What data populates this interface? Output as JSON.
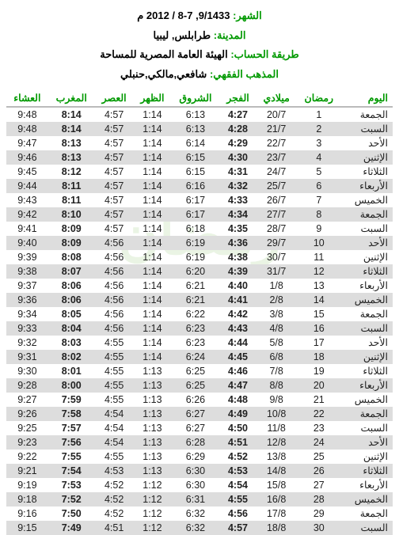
{
  "header": {
    "month_label": "الشهر:",
    "month_value": "9/1433, 7-8 / 2012 م",
    "city_label": "المدينة:",
    "city_value": "طرابلس, ليبيا",
    "method_label": "طريقة الحساب:",
    "method_value": "الهيئة العامة المصرية للمساحة",
    "school_label": "المذهب الفقهي:",
    "school_value": "شافعي,مالكي,حنبلي"
  },
  "watermark": "رمضان",
  "columns": [
    "اليوم",
    "رمضان",
    "ميلادي",
    "الفجر",
    "الشروق",
    "الظهر",
    "العصر",
    "المغرب",
    "العشاء"
  ],
  "rows": [
    [
      "الجمعة",
      "1",
      "20/7",
      "4:27",
      "6:13",
      "1:14",
      "4:57",
      "8:14",
      "9:48"
    ],
    [
      "السبت",
      "2",
      "21/7",
      "4:28",
      "6:13",
      "1:14",
      "4:57",
      "8:14",
      "9:48"
    ],
    [
      "الأحد",
      "3",
      "22/7",
      "4:29",
      "6:14",
      "1:14",
      "4:57",
      "8:13",
      "9:47"
    ],
    [
      "الإثنين",
      "4",
      "23/7",
      "4:30",
      "6:15",
      "1:14",
      "4:57",
      "8:13",
      "9:46"
    ],
    [
      "الثلاثاء",
      "5",
      "24/7",
      "4:31",
      "6:15",
      "1:14",
      "4:57",
      "8:12",
      "9:45"
    ],
    [
      "الأربعاء",
      "6",
      "25/7",
      "4:32",
      "6:16",
      "1:14",
      "4:57",
      "8:11",
      "9:44"
    ],
    [
      "الخميس",
      "7",
      "26/7",
      "4:33",
      "6:17",
      "1:14",
      "4:57",
      "8:11",
      "9:43"
    ],
    [
      "الجمعة",
      "8",
      "27/7",
      "4:34",
      "6:17",
      "1:14",
      "4:57",
      "8:10",
      "9:42"
    ],
    [
      "السبت",
      "9",
      "28/7",
      "4:35",
      "6:18",
      "1:14",
      "4:57",
      "8:09",
      "9:41"
    ],
    [
      "الأحد",
      "10",
      "29/7",
      "4:36",
      "6:19",
      "1:14",
      "4:56",
      "8:09",
      "9:40"
    ],
    [
      "الإثنين",
      "11",
      "30/7",
      "4:38",
      "6:19",
      "1:14",
      "4:56",
      "8:08",
      "9:39"
    ],
    [
      "الثلاثاء",
      "12",
      "31/7",
      "4:39",
      "6:20",
      "1:14",
      "4:56",
      "8:07",
      "9:38"
    ],
    [
      "الأربعاء",
      "13",
      "1/8",
      "4:40",
      "6:21",
      "1:14",
      "4:56",
      "8:06",
      "9:37"
    ],
    [
      "الخميس",
      "14",
      "2/8",
      "4:41",
      "6:21",
      "1:14",
      "4:56",
      "8:06",
      "9:36"
    ],
    [
      "الجمعة",
      "15",
      "3/8",
      "4:42",
      "6:22",
      "1:14",
      "4:56",
      "8:05",
      "9:34"
    ],
    [
      "السبت",
      "16",
      "4/8",
      "4:43",
      "6:23",
      "1:14",
      "4:56",
      "8:04",
      "9:33"
    ],
    [
      "الأحد",
      "17",
      "5/8",
      "4:44",
      "6:23",
      "1:14",
      "4:55",
      "8:03",
      "9:32"
    ],
    [
      "الإثنين",
      "18",
      "6/8",
      "4:45",
      "6:24",
      "1:14",
      "4:55",
      "8:02",
      "9:31"
    ],
    [
      "الثلاثاء",
      "19",
      "7/8",
      "4:46",
      "6:25",
      "1:13",
      "4:55",
      "8:01",
      "9:30"
    ],
    [
      "الأربعاء",
      "20",
      "8/8",
      "4:47",
      "6:25",
      "1:13",
      "4:55",
      "8:00",
      "9:28"
    ],
    [
      "الخميس",
      "21",
      "9/8",
      "4:48",
      "6:26",
      "1:13",
      "4:55",
      "7:59",
      "9:27"
    ],
    [
      "الجمعة",
      "22",
      "10/8",
      "4:49",
      "6:27",
      "1:13",
      "4:54",
      "7:58",
      "9:26"
    ],
    [
      "السبت",
      "23",
      "11/8",
      "4:50",
      "6:27",
      "1:13",
      "4:54",
      "7:57",
      "9:25"
    ],
    [
      "الأحد",
      "24",
      "12/8",
      "4:51",
      "6:28",
      "1:13",
      "4:54",
      "7:56",
      "9:23"
    ],
    [
      "الإثنين",
      "25",
      "13/8",
      "4:52",
      "6:29",
      "1:13",
      "4:55",
      "7:55",
      "9:22"
    ],
    [
      "الثلاثاء",
      "26",
      "14/8",
      "4:53",
      "6:30",
      "1:13",
      "4:53",
      "7:54",
      "9:21"
    ],
    [
      "الأربعاء",
      "27",
      "15/8",
      "4:54",
      "6:30",
      "1:12",
      "4:52",
      "7:53",
      "9:19"
    ],
    [
      "الخميس",
      "28",
      "16/8",
      "4:55",
      "6:31",
      "1:12",
      "4:52",
      "7:52",
      "9:18"
    ],
    [
      "الجمعة",
      "29",
      "17/8",
      "4:56",
      "6:32",
      "1:12",
      "4:52",
      "7:50",
      "9:16"
    ],
    [
      "السبت",
      "30",
      "18/8",
      "4:57",
      "6:32",
      "1:12",
      "4:51",
      "7:49",
      "9:15"
    ]
  ]
}
